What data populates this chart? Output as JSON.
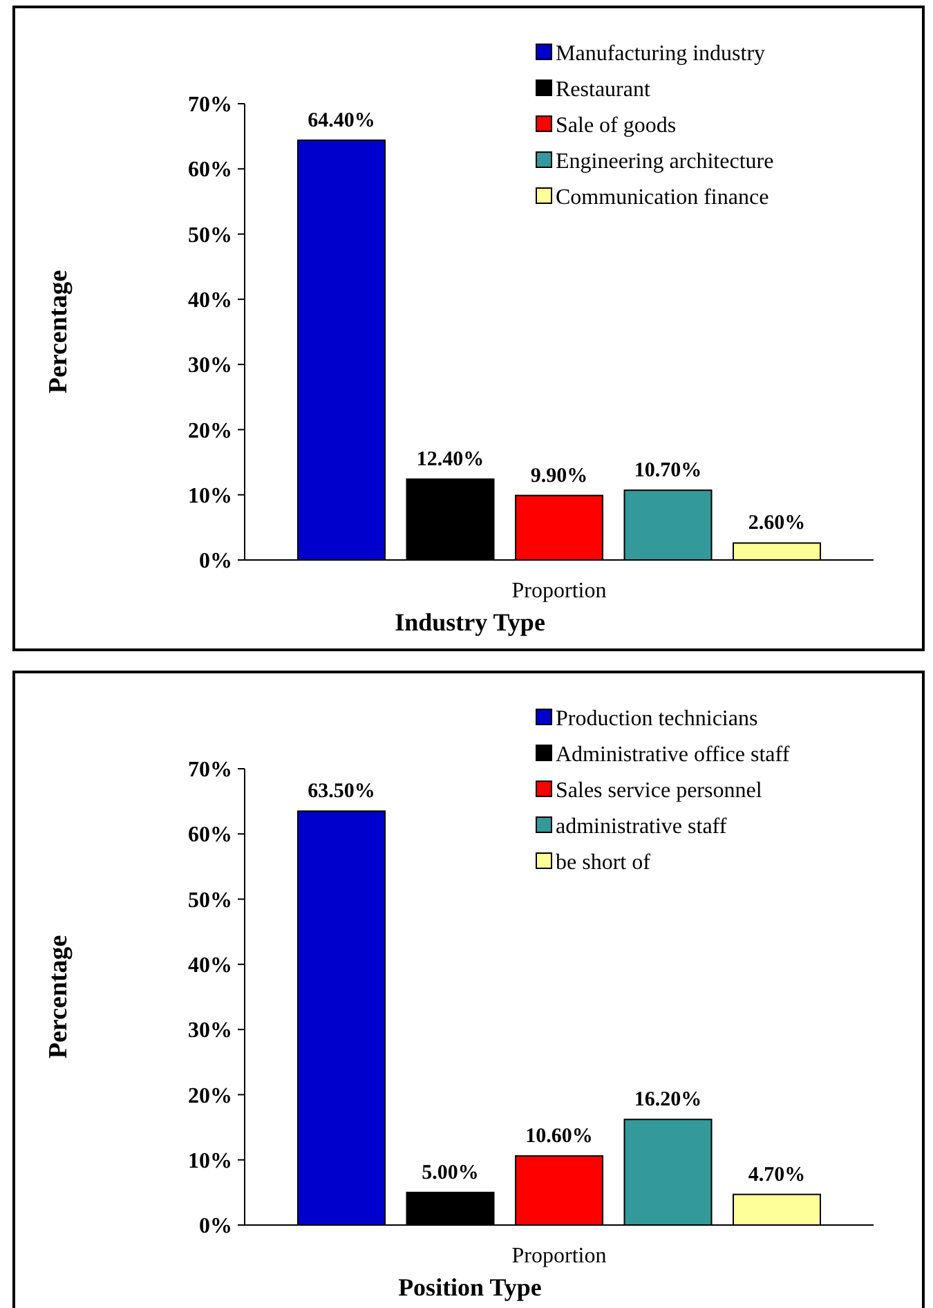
{
  "chart_data": [
    {
      "type": "bar",
      "xlabel": "Industry  Type",
      "ylabel": "Percentage",
      "categories": [
        "Proportion"
      ],
      "ylim": [
        0,
        70
      ],
      "yticks": [
        {
          "value": 0,
          "label": "0%"
        },
        {
          "value": 10,
          "label": "10%"
        },
        {
          "value": 20,
          "label": "20%"
        },
        {
          "value": 30,
          "label": "30%"
        },
        {
          "value": 40,
          "label": "40%"
        },
        {
          "value": 50,
          "label": "50%"
        },
        {
          "value": 60,
          "label": "60%"
        },
        {
          "value": 70,
          "label": "70%"
        }
      ],
      "legend": "top right",
      "grid": false,
      "series": [
        {
          "name": "Manufacturing industry",
          "color": "#0000cc",
          "values": [
            64.4
          ],
          "value_labels": [
            "64.40%"
          ]
        },
        {
          "name": "Restaurant",
          "color": "#000000",
          "values": [
            12.4
          ],
          "value_labels": [
            "12.40%"
          ]
        },
        {
          "name": "Sale of goods",
          "color": "#ff0000",
          "values": [
            9.9
          ],
          "value_labels": [
            "9.90%"
          ]
        },
        {
          "name": "Engineering architecture",
          "color": "#33999a",
          "values": [
            10.7
          ],
          "value_labels": [
            "10.70%"
          ]
        },
        {
          "name": "Communication finance",
          "color": "#ffff99",
          "values": [
            2.6
          ],
          "value_labels": [
            "2.60%"
          ]
        }
      ]
    },
    {
      "type": "bar",
      "xlabel": "Position Type",
      "ylabel": "Percentage",
      "categories": [
        "Proportion"
      ],
      "ylim": [
        0,
        70
      ],
      "yticks": [
        {
          "value": 0,
          "label": "0%"
        },
        {
          "value": 10,
          "label": "10%"
        },
        {
          "value": 20,
          "label": "20%"
        },
        {
          "value": 30,
          "label": "30%"
        },
        {
          "value": 40,
          "label": "40%"
        },
        {
          "value": 50,
          "label": "50%"
        },
        {
          "value": 60,
          "label": "60%"
        },
        {
          "value": 70,
          "label": "70%"
        }
      ],
      "legend": "top right",
      "grid": false,
      "series": [
        {
          "name": "Production technicians",
          "color": "#0000cc",
          "values": [
            63.5
          ],
          "value_labels": [
            "63.50%"
          ]
        },
        {
          "name": "Administrative office staff",
          "color": "#000000",
          "values": [
            5.0
          ],
          "value_labels": [
            "5.00%"
          ]
        },
        {
          "name": "Sales service personnel",
          "color": "#ff0000",
          "values": [
            10.6
          ],
          "value_labels": [
            "10.60%"
          ]
        },
        {
          "name": "administrative staff",
          "color": "#33999a",
          "values": [
            16.2
          ],
          "value_labels": [
            "16.20%"
          ]
        },
        {
          "name": "be short of",
          "color": "#ffff99",
          "values": [
            4.7
          ],
          "value_labels": [
            "4.70%"
          ]
        }
      ]
    }
  ]
}
